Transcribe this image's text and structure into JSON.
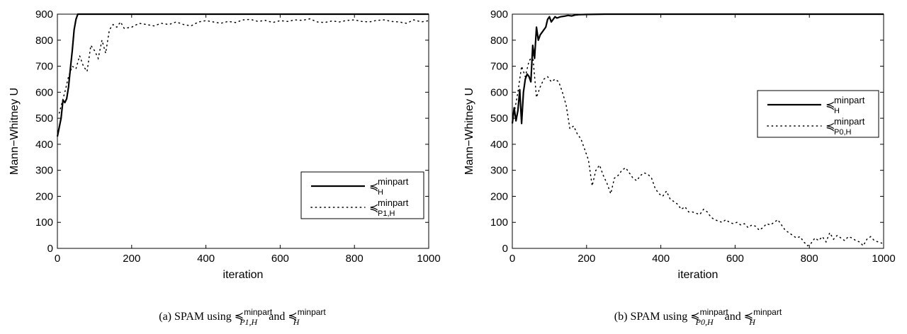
{
  "chart_data": [
    {
      "type": "line",
      "caption": {
        "prefix": "(a) SPAM using ",
        "r1": "minpart",
        "r1_sub": "P1,H",
        "middle": " and ",
        "r2": "minpart",
        "r2_sub": "H"
      },
      "xlabel": "iteration",
      "ylabel": "Mann−Whitney U",
      "xlim": [
        0,
        1000
      ],
      "ylim": [
        0,
        900
      ],
      "xticks": [
        "0",
        "200",
        "400",
        "600",
        "800",
        "1000"
      ],
      "yticks": [
        "0",
        "100",
        "200",
        "300",
        "400",
        "500",
        "600",
        "700",
        "800",
        "900"
      ],
      "grid": false,
      "legend_position": "lower-right",
      "series": [
        {
          "name_sup": "minpart",
          "name_sub": "H",
          "style": "solid",
          "x": [
            0,
            10,
            15,
            20,
            25,
            30,
            35,
            40,
            45,
            50,
            55,
            60,
            1000
          ],
          "y": [
            430,
            500,
            570,
            560,
            575,
            620,
            690,
            760,
            840,
            880,
            900,
            900,
            900
          ]
        },
        {
          "name_sup": "minpart",
          "name_sub": "P1,H",
          "style": "dotted",
          "x": [
            5,
            20,
            30,
            40,
            50,
            60,
            70,
            80,
            90,
            100,
            110,
            120,
            130,
            140,
            150,
            160,
            170,
            180,
            200,
            220,
            240,
            260,
            280,
            300,
            320,
            340,
            360,
            380,
            400,
            420,
            440,
            460,
            480,
            500,
            520,
            540,
            560,
            580,
            600,
            620,
            640,
            660,
            680,
            700,
            720,
            740,
            760,
            780,
            800,
            820,
            840,
            860,
            880,
            900,
            920,
            940,
            960,
            980,
            1000
          ],
          "y": [
            520,
            600,
            660,
            700,
            690,
            740,
            700,
            680,
            780,
            760,
            730,
            800,
            750,
            840,
            860,
            850,
            870,
            845,
            850,
            865,
            860,
            855,
            865,
            860,
            870,
            860,
            855,
            870,
            875,
            870,
            865,
            872,
            868,
            878,
            880,
            872,
            876,
            868,
            875,
            872,
            878,
            876,
            882,
            870,
            868,
            874,
            870,
            876,
            878,
            872,
            870,
            876,
            878,
            872,
            870,
            865,
            878,
            870,
            875
          ]
        }
      ]
    },
    {
      "type": "line",
      "caption": {
        "prefix": "(b) SPAM using ",
        "r1": "minpart",
        "r1_sub": "P0,H",
        "middle": " and ",
        "r2": "minpart",
        "r2_sub": "H"
      },
      "xlabel": "iteration",
      "ylabel": "Mann−Whitney U",
      "xlim": [
        0,
        1000
      ],
      "ylim": [
        0,
        900
      ],
      "xticks": [
        "0",
        "200",
        "400",
        "600",
        "800",
        "1000"
      ],
      "yticks": [
        "0",
        "100",
        "200",
        "300",
        "400",
        "500",
        "600",
        "700",
        "800",
        "900"
      ],
      "grid": false,
      "legend_position": "upper-right",
      "series": [
        {
          "name_sup": "minpart",
          "name_sub": "H",
          "style": "solid",
          "x": [
            0,
            5,
            10,
            15,
            20,
            25,
            30,
            35,
            40,
            45,
            50,
            55,
            60,
            65,
            70,
            75,
            80,
            85,
            90,
            95,
            100,
            105,
            110,
            115,
            120,
            130,
            140,
            150,
            160,
            170,
            180,
            200,
            250,
            300,
            1000
          ],
          "y": [
            480,
            540,
            490,
            530,
            610,
            480,
            600,
            650,
            670,
            660,
            640,
            780,
            730,
            850,
            800,
            820,
            830,
            840,
            850,
            880,
            890,
            870,
            880,
            890,
            885,
            890,
            892,
            895,
            893,
            897,
            898,
            899,
            900,
            900,
            900
          ]
        },
        {
          "name_sup": "minpart",
          "name_sub": "P0,H",
          "style": "dotted",
          "x": [
            5,
            15,
            25,
            35,
            45,
            55,
            65,
            75,
            85,
            95,
            105,
            115,
            125,
            135,
            145,
            155,
            165,
            175,
            185,
            195,
            205,
            215,
            225,
            235,
            245,
            255,
            265,
            275,
            285,
            295,
            305,
            315,
            325,
            335,
            345,
            355,
            365,
            375,
            385,
            395,
            405,
            415,
            425,
            435,
            445,
            455,
            465,
            475,
            485,
            495,
            505,
            515,
            525,
            535,
            545,
            555,
            565,
            575,
            585,
            595,
            605,
            615,
            625,
            635,
            645,
            655,
            665,
            675,
            685,
            695,
            705,
            715,
            725,
            735,
            745,
            755,
            765,
            775,
            785,
            795,
            805,
            815,
            825,
            835,
            845,
            855,
            865,
            875,
            885,
            895,
            905,
            915,
            925,
            935,
            945,
            955,
            965,
            975,
            985,
            995
          ],
          "y": [
            520,
            600,
            700,
            660,
            720,
            740,
            580,
            620,
            650,
            660,
            640,
            650,
            640,
            600,
            550,
            460,
            470,
            440,
            420,
            380,
            340,
            240,
            300,
            320,
            280,
            250,
            210,
            270,
            280,
            300,
            310,
            290,
            270,
            260,
            280,
            290,
            285,
            270,
            230,
            210,
            200,
            220,
            190,
            180,
            170,
            150,
            160,
            140,
            140,
            135,
            130,
            150,
            140,
            120,
            110,
            105,
            100,
            110,
            100,
            95,
            100,
            90,
            95,
            80,
            90,
            85,
            70,
            80,
            95,
            90,
            100,
            110,
            90,
            70,
            60,
            50,
            40,
            45,
            25,
            10,
            20,
            40,
            30,
            45,
            25,
            60,
            35,
            50,
            40,
            30,
            45,
            40,
            30,
            25,
            10,
            35,
            45,
            30,
            25,
            20
          ]
        }
      ]
    }
  ]
}
